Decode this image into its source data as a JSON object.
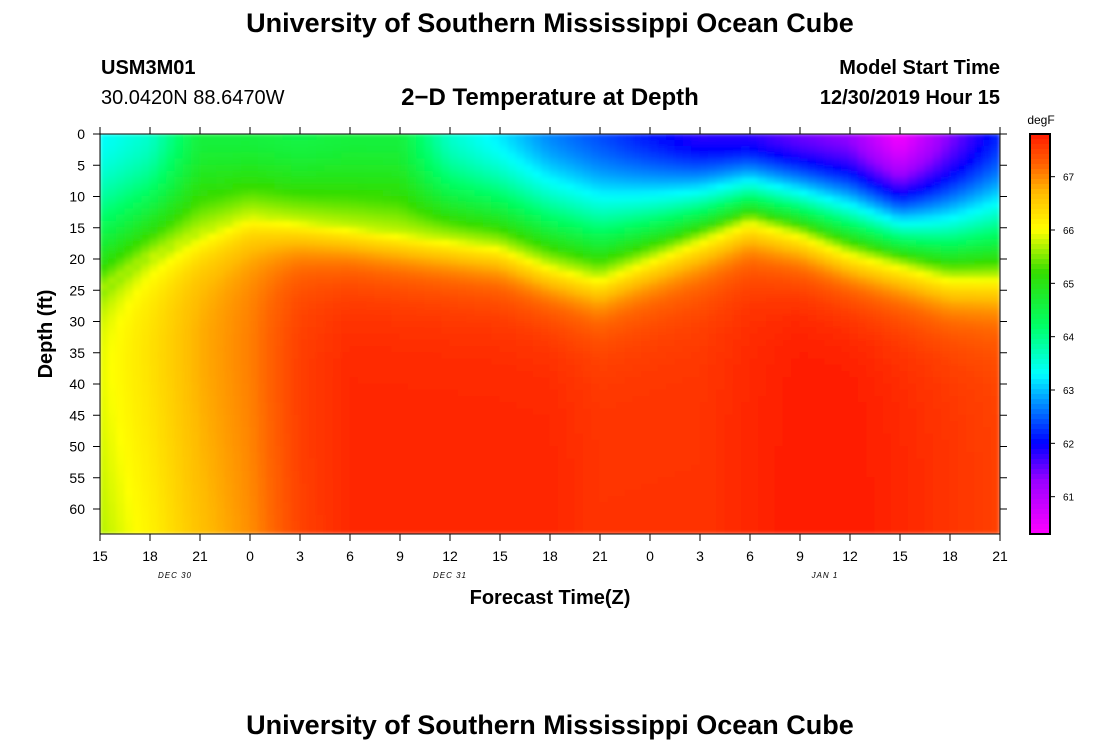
{
  "page": {
    "title_top": "University of Southern Mississippi Ocean Cube",
    "title_bottom": "University of Southern Mississippi Ocean Cube",
    "station_id": "USM3M01",
    "location": "30.0420N 88.6470W",
    "plot_title": "2−D Temperature at Depth",
    "model_start_label": "Model Start Time",
    "model_start_value": "12/30/2019 Hour 15"
  },
  "chart_data": {
    "type": "heatmap",
    "title": "2−D Temperature at Depth",
    "xlabel": "Forecast Time(Z)",
    "ylabel": "Depth (ft)",
    "xlim": [
      0,
      54
    ],
    "ylim": [
      0,
      64
    ],
    "x_ticks": [
      0,
      3,
      6,
      9,
      12,
      15,
      18,
      21,
      24,
      27,
      30,
      33,
      36,
      39,
      42,
      45,
      48,
      51,
      54
    ],
    "x_tick_labels": [
      "15",
      "18",
      "21",
      "0",
      "3",
      "6",
      "9",
      "12",
      "15",
      "18",
      "21",
      "0",
      "3",
      "6",
      "9",
      "12",
      "15",
      "18",
      "21"
    ],
    "y_ticks": [
      0,
      5,
      10,
      15,
      20,
      25,
      30,
      35,
      40,
      45,
      50,
      55,
      60
    ],
    "y_tick_labels": [
      "0",
      "5",
      "10",
      "15",
      "20",
      "25",
      "30",
      "35",
      "40",
      "45",
      "50",
      "55",
      "60"
    ],
    "date_labels": [
      {
        "x": 4.5,
        "label": "DEC 30"
      },
      {
        "x": 21,
        "label": "DEC 31"
      },
      {
        "x": 43.5,
        "label": "JAN 1"
      }
    ],
    "colorbar": {
      "unit": "degF",
      "range": [
        60.3,
        67.8
      ],
      "ticks": [
        61,
        62,
        63,
        64,
        65,
        66,
        67
      ],
      "stops": [
        {
          "v": 60.3,
          "c": "#ff00ff"
        },
        {
          "v": 61.3,
          "c": "#9900ff"
        },
        {
          "v": 62.0,
          "c": "#0000ff"
        },
        {
          "v": 62.8,
          "c": "#0099ff"
        },
        {
          "v": 63.3,
          "c": "#00ffff"
        },
        {
          "v": 64.2,
          "c": "#00ff66"
        },
        {
          "v": 65.2,
          "c": "#33dd00"
        },
        {
          "v": 66.0,
          "c": "#ffff00"
        },
        {
          "v": 66.7,
          "c": "#ffbb00"
        },
        {
          "v": 67.2,
          "c": "#ff6600"
        },
        {
          "v": 67.8,
          "c": "#ff1a00"
        }
      ]
    },
    "thermocline": {
      "x": [
        0,
        3,
        6,
        9,
        12,
        15,
        18,
        21,
        24,
        27,
        30,
        33,
        36,
        39,
        42,
        45,
        48,
        51,
        54
      ],
      "depth_ft": [
        26,
        20,
        16,
        13,
        14,
        15,
        16,
        17,
        18,
        21,
        23,
        20,
        17,
        14,
        16,
        19,
        21,
        23,
        23
      ]
    },
    "surface_temp_degF": {
      "x": [
        0,
        3,
        6,
        9,
        12,
        15,
        18,
        21,
        24,
        27,
        30,
        33,
        36,
        39,
        42,
        45,
        48,
        51,
        54
      ],
      "values": [
        63.3,
        63.6,
        64.6,
        64.6,
        64.5,
        64.6,
        64.6,
        63.6,
        63.2,
        62.7,
        62.4,
        62.1,
        61.8,
        61.8,
        61.5,
        61.3,
        60.4,
        61.4,
        62.2
      ]
    },
    "deep_temp_degF": {
      "x": [
        0,
        3,
        6,
        9,
        12,
        15,
        18,
        21,
        24,
        27,
        30,
        33,
        36,
        39,
        42,
        45,
        48,
        51,
        54
      ],
      "values": [
        66.3,
        66.6,
        67.0,
        67.2,
        67.6,
        67.7,
        67.7,
        67.7,
        67.7,
        67.7,
        67.6,
        67.6,
        67.6,
        67.7,
        67.8,
        67.8,
        67.7,
        67.6,
        67.5
      ]
    }
  }
}
